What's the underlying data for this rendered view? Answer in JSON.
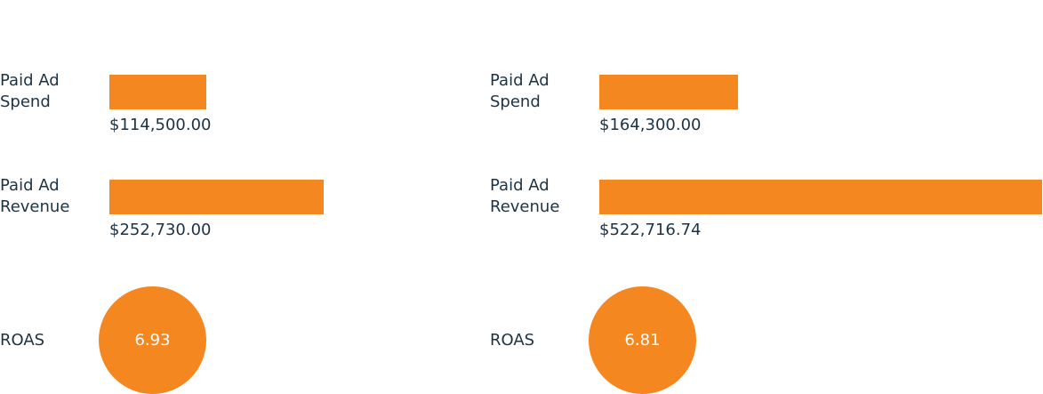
{
  "chart_data": [
    {
      "type": "hbar",
      "categories": [
        "Paid Ad Spend",
        "Paid Ad Revenue"
      ],
      "values": [
        114500,
        252730
      ],
      "value_labels": [
        "$114,500.00",
        "$252,730.00"
      ],
      "color": "#f58720",
      "xlim": [
        0,
        525000
      ],
      "roas": {
        "label": "ROAS",
        "value": 6.93
      }
    },
    {
      "type": "hbar",
      "categories": [
        "Paid Ad Spend",
        "Paid Ad Revenue"
      ],
      "values": [
        164300,
        522716.74
      ],
      "value_labels": [
        "$164,300.00",
        "$522,716.74"
      ],
      "color": "#f58720",
      "xlim": [
        0,
        525000
      ],
      "roas": {
        "label": "ROAS",
        "value": 6.81
      }
    }
  ]
}
